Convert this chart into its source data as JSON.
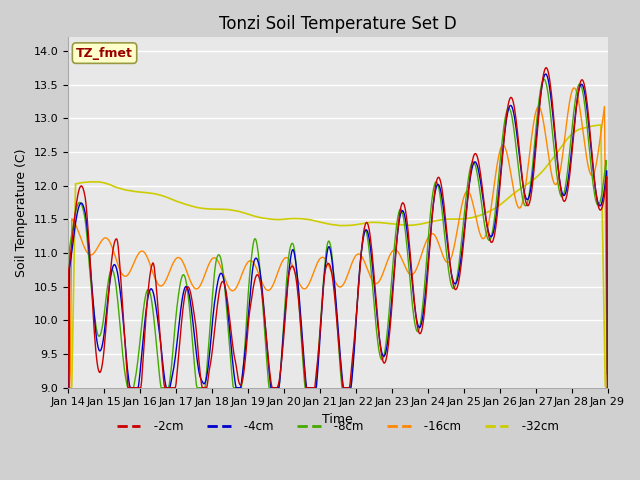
{
  "title": "Tonzi Soil Temperature Set D",
  "xlabel": "Time",
  "ylabel": "Soil Temperature (C)",
  "ylim": [
    9.0,
    14.2
  ],
  "yticks": [
    9.0,
    9.5,
    10.0,
    10.5,
    11.0,
    11.5,
    12.0,
    12.5,
    13.0,
    13.5,
    14.0
  ],
  "plot_bg_color": "#e8e8e8",
  "fig_bg_color": "#d0d0d0",
  "legend_label": "TZ_fmet",
  "legend_bg": "#ffffcc",
  "legend_border": "#999944",
  "series_colors": {
    "-2cm": "#cc0000",
    "-4cm": "#0000cc",
    "-8cm": "#44aa00",
    "-16cm": "#ff8800",
    "-32cm": "#cccc00"
  },
  "xtick_labels": [
    "Jan 14",
    "Jan 15",
    "Jan 16",
    "Jan 17",
    "Jan 18",
    "Jan 19",
    "Jan 20",
    "Jan 21",
    "Jan 22",
    "Jan 23",
    "Jan 24",
    "Jan 25",
    "Jan 26",
    "Jan 27",
    "Jan 28",
    "Jan 29"
  ],
  "title_fontsize": 12,
  "axis_label_fontsize": 9,
  "tick_fontsize": 8
}
